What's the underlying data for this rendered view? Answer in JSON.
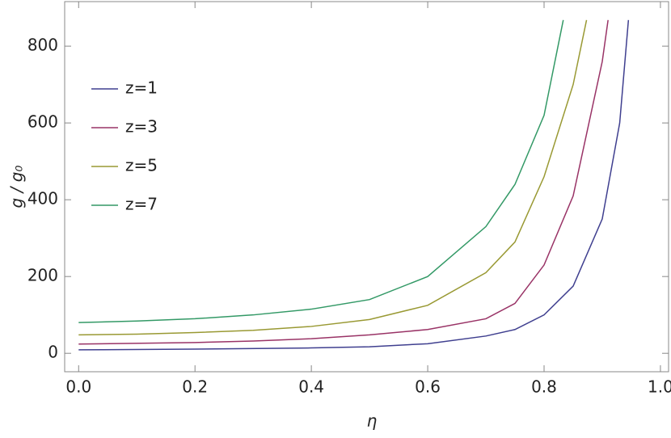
{
  "chart_data": {
    "type": "line",
    "xlabel": "η",
    "ylabel": "g / g₀",
    "xlim": [
      -0.024,
      1.014
    ],
    "ylim": [
      -48,
      916
    ],
    "xticks": [
      {
        "value": 0,
        "label": "0.0"
      },
      0.2,
      0.4,
      0.6,
      0.8,
      {
        "value": 1,
        "label": "1.0"
      }
    ],
    "yticks": [
      0,
      200,
      400,
      600,
      800
    ],
    "legend": "upper-left",
    "series": [
      {
        "name": "z=1",
        "color": "#3f3f8f",
        "x": [
          0,
          0.2,
          0.4,
          0.5,
          0.6,
          0.7,
          0.75,
          0.8,
          0.85,
          0.9,
          0.93,
          0.945
        ],
        "values": [
          9,
          11,
          14,
          17,
          25,
          45,
          62,
          100,
          175,
          350,
          600,
          868
        ]
      },
      {
        "name": "z=3",
        "color": "#993366",
        "x": [
          0,
          0.2,
          0.3,
          0.4,
          0.5,
          0.6,
          0.7,
          0.75,
          0.8,
          0.85,
          0.9,
          0.91
        ],
        "values": [
          24,
          28,
          32,
          38,
          48,
          62,
          90,
          130,
          230,
          410,
          760,
          868
        ]
      },
      {
        "name": "z=5",
        "color": "#999933",
        "x": [
          0,
          0.1,
          0.2,
          0.3,
          0.4,
          0.5,
          0.6,
          0.7,
          0.75,
          0.8,
          0.85,
          0.873
        ],
        "values": [
          48,
          50,
          54,
          60,
          70,
          88,
          125,
          210,
          290,
          460,
          700,
          868
        ]
      },
      {
        "name": "z=7",
        "color": "#339966",
        "x": [
          0,
          0.1,
          0.2,
          0.3,
          0.4,
          0.5,
          0.6,
          0.7,
          0.75,
          0.8,
          0.833
        ],
        "values": [
          80,
          84,
          90,
          100,
          115,
          140,
          200,
          330,
          440,
          620,
          868
        ]
      }
    ]
  }
}
